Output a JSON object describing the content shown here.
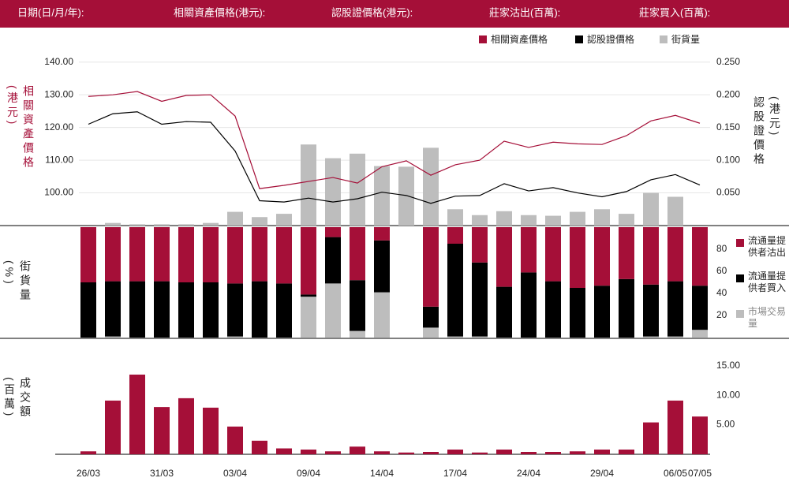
{
  "header": {
    "labels": [
      "日期(日/月/年):",
      "相關資產價格(港元):",
      "認股證價格(港元):",
      "莊家沽出(百萬):",
      "莊家買入(百萬):"
    ]
  },
  "chart_data": [
    {
      "type": "combo",
      "y_label": "相關資產價格(港元)",
      "y2_label": "認股證價格(港元)",
      "ylim": [
        90,
        145
      ],
      "yticks": [
        {
          "value": 100,
          "label": "100.00"
        },
        {
          "value": 110,
          "label": "110.00"
        },
        {
          "value": 120,
          "label": "120.00"
        },
        {
          "value": 130,
          "label": "130.00"
        },
        {
          "value": 140,
          "label": "140.00"
        }
      ],
      "y2lim": [
        0,
        0.275
      ],
      "y2ticks": [
        {
          "value": 0.05,
          "label": "0.050"
        },
        {
          "value": 0.1,
          "label": "0.100"
        },
        {
          "value": 0.15,
          "label": "0.150"
        },
        {
          "value": 0.2,
          "label": "0.200"
        },
        {
          "value": 0.25,
          "label": "0.250"
        }
      ],
      "grid": true,
      "series": [
        {
          "name": "相關資產價格",
          "kind": "line",
          "color": "#a50f38",
          "values": [
            129.5,
            130,
            131,
            128,
            129.8,
            130,
            123.5,
            101.3,
            102.3,
            103.5,
            104.7,
            103,
            108,
            109.8,
            105.4,
            108.6,
            110,
            115.8,
            113.9,
            115.5,
            115,
            114.8,
            117.5,
            122,
            123.7,
            121.3
          ]
        },
        {
          "name": "認股證價格",
          "kind": "line",
          "color": "#000000",
          "axis": "y2",
          "values": [
            0.155,
            0.171,
            0.174,
            0.155,
            0.159,
            0.158,
            0.114,
            0.038,
            0.036,
            0.042,
            0.036,
            0.041,
            0.051,
            0.046,
            0.034,
            0.045,
            0.046,
            0.064,
            0.053,
            0.058,
            0.05,
            0.044,
            0.052,
            0.07,
            0.078,
            0.062
          ]
        },
        {
          "name": "街貨量",
          "kind": "bar",
          "color": "#bdbdbd",
          "axis": "y2",
          "values": [
            0,
            0.004,
            0.002,
            0.002,
            0.002,
            0.004,
            0.021,
            0.013,
            0.018,
            0.124,
            0.103,
            0.11,
            0.091,
            0.09,
            0.119,
            0.025,
            0.016,
            0.022,
            0.016,
            0.015,
            0.021,
            0.025,
            0.018,
            0.05,
            0.044,
            0
          ]
        }
      ]
    },
    {
      "type": "stacked_bar",
      "y_label": "街貨量(%)",
      "ylim": [
        0,
        100
      ],
      "yticks": [
        20,
        40,
        60,
        80
      ],
      "series": [
        {
          "name": "流通量提供者沽出",
          "color": "#a50f38",
          "values": [
            50,
            49,
            49,
            49,
            50,
            50,
            51,
            49,
            51,
            61,
            9,
            48,
            12,
            0,
            72,
            15,
            32,
            54,
            41,
            49,
            55,
            53,
            47,
            52,
            49,
            53
          ]
        },
        {
          "name": "流通量提供者買入",
          "color": "#000000",
          "values": [
            50,
            50,
            51,
            51,
            50,
            50,
            48,
            51,
            49,
            2,
            42,
            46,
            47,
            0,
            19,
            84,
            67,
            46,
            59,
            51,
            45,
            47,
            53,
            47,
            50,
            40
          ]
        },
        {
          "name": "市場交易量",
          "color": "#bdbdbd",
          "values": [
            0,
            1,
            0,
            0,
            0,
            0,
            1,
            0,
            0,
            37,
            49,
            6,
            41,
            0,
            9,
            1,
            1,
            0,
            0,
            0,
            0,
            0,
            0,
            1,
            1,
            7
          ]
        }
      ]
    },
    {
      "type": "bar",
      "y_label": "成交額(百萬)",
      "ylim": [
        0,
        17.5
      ],
      "yticks": [
        {
          "value": 5,
          "label": "5.00"
        },
        {
          "value": 10,
          "label": "10.00"
        },
        {
          "value": 15,
          "label": "15.00"
        }
      ],
      "color": "#a50f38",
      "categories": [
        "26/03",
        null,
        null,
        "31/03",
        null,
        null,
        "03/04",
        null,
        null,
        "09/04",
        null,
        null,
        "14/04",
        null,
        null,
        "17/04",
        null,
        null,
        "24/04",
        null,
        null,
        "29/04",
        null,
        null,
        "06/05",
        "07/05"
      ],
      "values": [
        0.5,
        9.1,
        13.5,
        8,
        9.5,
        7.9,
        4.7,
        2.3,
        1,
        0.8,
        0.5,
        1.3,
        0.5,
        0.3,
        0.4,
        0.8,
        0.3,
        0.8,
        0.4,
        0.4,
        0.5,
        0.8,
        0.8,
        5.4,
        9.1,
        6.4
      ]
    }
  ]
}
